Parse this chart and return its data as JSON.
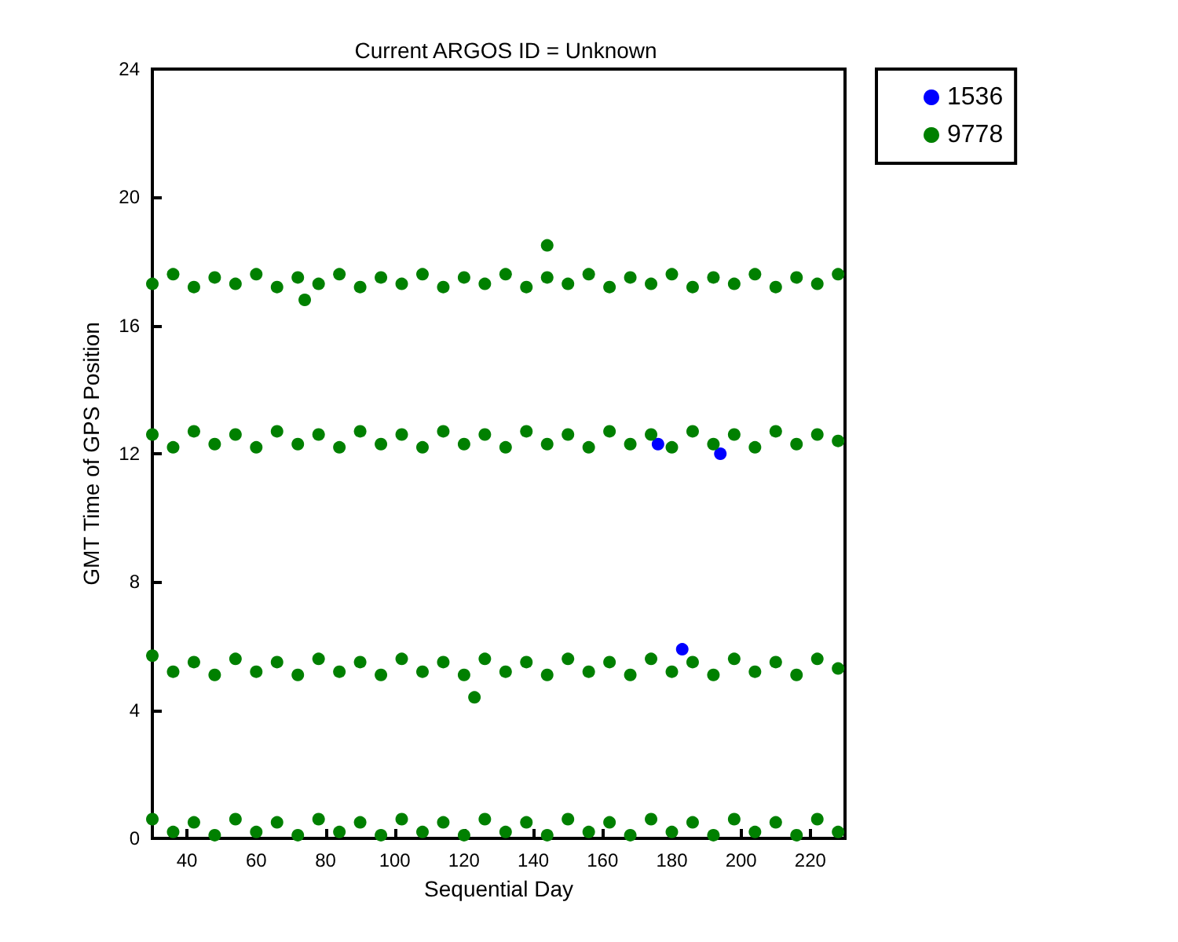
{
  "chart_data": {
    "type": "scatter",
    "title": "Current ARGOS ID = Unknown",
    "xlabel": "Sequential Day",
    "ylabel": "GMT Time of GPS Position",
    "xlim": [
      30,
      230
    ],
    "xticks": [
      40,
      60,
      80,
      100,
      120,
      140,
      160,
      180,
      200,
      220
    ],
    "ylim": [
      0,
      24
    ],
    "yticks": [
      0,
      4,
      8,
      12,
      16,
      20,
      24
    ],
    "grid": false,
    "legend": "top right",
    "marker": "circle",
    "series": [
      {
        "name": "1536",
        "color": "#0000ff",
        "x": [
          176,
          183,
          194
        ],
        "values": [
          12.3,
          5.9,
          12.0
        ]
      },
      {
        "name": "9778",
        "color": "#008000",
        "x": [
          30,
          36,
          42,
          48,
          54,
          60,
          66,
          72,
          78,
          84,
          90,
          96,
          102,
          108,
          114,
          120,
          126,
          132,
          138,
          144,
          150,
          156,
          162,
          168,
          174,
          180,
          186,
          192,
          198,
          204,
          210,
          216,
          222,
          228,
          74,
          144,
          30,
          36,
          42,
          48,
          54,
          60,
          66,
          72,
          78,
          84,
          90,
          96,
          102,
          108,
          114,
          120,
          126,
          132,
          138,
          144,
          150,
          156,
          162,
          168,
          174,
          180,
          186,
          192,
          198,
          204,
          210,
          216,
          222,
          228,
          30,
          36,
          42,
          48,
          54,
          60,
          66,
          72,
          78,
          84,
          90,
          96,
          102,
          108,
          114,
          120,
          126,
          132,
          138,
          144,
          150,
          156,
          162,
          168,
          174,
          180,
          186,
          192,
          198,
          204,
          210,
          216,
          222,
          228,
          123,
          30,
          36,
          42,
          48,
          54,
          60,
          66,
          72,
          78,
          84,
          90,
          96,
          102,
          108,
          114,
          120,
          126,
          132,
          138,
          144,
          150,
          156,
          162,
          168,
          174,
          180,
          186,
          192,
          198,
          204,
          210,
          216,
          222,
          228
        ],
        "values": [
          17.3,
          17.6,
          17.2,
          17.5,
          17.3,
          17.6,
          17.2,
          17.5,
          17.3,
          17.6,
          17.2,
          17.5,
          17.3,
          17.6,
          17.2,
          17.5,
          17.3,
          17.6,
          17.2,
          17.5,
          17.3,
          17.6,
          17.2,
          17.5,
          17.3,
          17.6,
          17.2,
          17.5,
          17.3,
          17.6,
          17.2,
          17.5,
          17.3,
          17.6,
          16.8,
          18.5,
          12.6,
          12.2,
          12.7,
          12.3,
          12.6,
          12.2,
          12.7,
          12.3,
          12.6,
          12.2,
          12.7,
          12.3,
          12.6,
          12.2,
          12.7,
          12.3,
          12.6,
          12.2,
          12.7,
          12.3,
          12.6,
          12.2,
          12.7,
          12.3,
          12.6,
          12.2,
          12.7,
          12.3,
          12.6,
          12.2,
          12.7,
          12.3,
          12.6,
          12.4,
          5.7,
          5.2,
          5.5,
          5.1,
          5.6,
          5.2,
          5.5,
          5.1,
          5.6,
          5.2,
          5.5,
          5.1,
          5.6,
          5.2,
          5.5,
          5.1,
          5.6,
          5.2,
          5.5,
          5.1,
          5.6,
          5.2,
          5.5,
          5.1,
          5.6,
          5.2,
          5.5,
          5.1,
          5.6,
          5.2,
          5.5,
          5.1,
          5.6,
          5.3,
          4.4,
          0.6,
          0.2,
          0.5,
          0.1,
          0.6,
          0.2,
          0.5,
          0.1,
          0.6,
          0.2,
          0.5,
          0.1,
          0.6,
          0.2,
          0.5,
          0.1,
          0.6,
          0.2,
          0.5,
          0.1,
          0.6,
          0.2,
          0.5,
          0.1,
          0.6,
          0.2,
          0.5,
          0.1,
          0.6,
          0.2,
          0.5,
          0.1,
          0.6,
          0.2
        ]
      }
    ]
  }
}
